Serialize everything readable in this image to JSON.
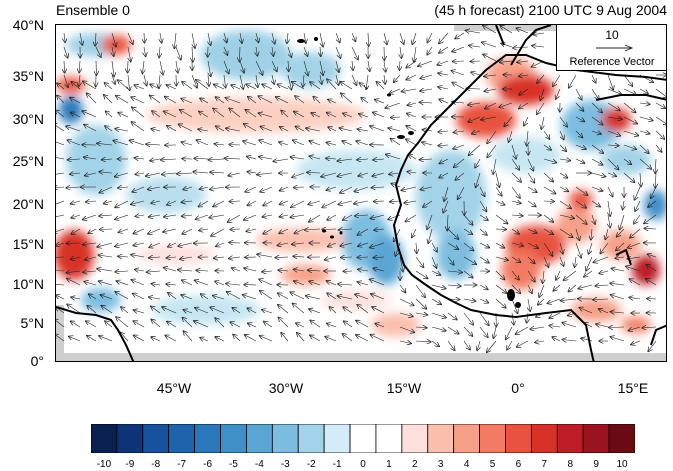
{
  "header": {
    "left_title": "Ensemble 0",
    "right_title": "(45 h forecast) 2100 UTC 9 Aug 2004"
  },
  "axes": {
    "lat_labels": [
      "40°N",
      "35°N",
      "30°N",
      "25°N",
      "20°N",
      "15°N",
      "10°N",
      "5°N",
      "0°"
    ],
    "lon_labels": [
      "45°W",
      "30°W",
      "15°W",
      "0°",
      "15°E"
    ]
  },
  "reference_vector": {
    "magnitude": "10",
    "label": "Reference Vector"
  },
  "colorbar": {
    "tick_labels": [
      "-10",
      "-9",
      "-8",
      "-7",
      "-6",
      "-5",
      "-4",
      "-3",
      "-2",
      "-1",
      "0",
      "1",
      "2",
      "3",
      "4",
      "5",
      "6",
      "7",
      "8",
      "9",
      "10"
    ],
    "colors": [
      "#0a2050",
      "#0d3478",
      "#16529e",
      "#1f63ad",
      "#2a78bb",
      "#3f8fc8",
      "#5aa5d4",
      "#7cbde0",
      "#a3d3e8",
      "#d3edf6",
      "#ffffff",
      "#ffffff",
      "#fde0dd",
      "#fbbfae",
      "#f7a089",
      "#f27c63",
      "#e8523f",
      "#d83128",
      "#be1d25",
      "#9a1420",
      "#6a0a12"
    ]
  },
  "map_colors": {
    "ocean_bg": "#ffffff",
    "coast": "#000000",
    "vector": "#222222",
    "missing": "#cfcfcf"
  }
}
